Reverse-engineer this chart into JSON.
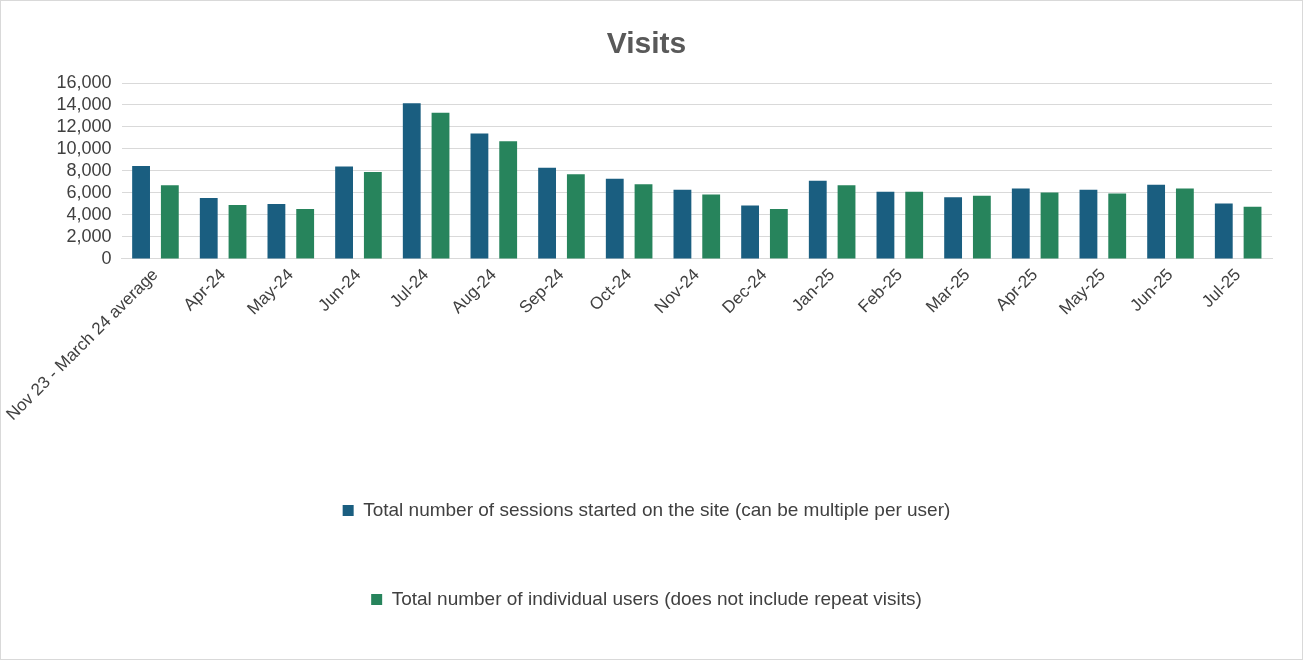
{
  "chart_data": {
    "type": "bar",
    "title": "Visits",
    "categories": [
      "Nov 23 - March 24 average",
      "Apr-24",
      "May-24",
      "Jun-24",
      "Jul-24",
      "Aug-24",
      "Sep-24",
      "Oct-24",
      "Nov-24",
      "Dec-24",
      "Jan-25",
      "Feb-25",
      "Mar-25",
      "Apr-25",
      "May-25",
      "Jun-25",
      "Jul-25"
    ],
    "series": [
      {
        "name": "Total number of sessions started on the site (can be multiple per user)",
        "color": "#1a5e80",
        "values": [
          8450,
          5550,
          5000,
          8400,
          14150,
          11400,
          8300,
          7300,
          6300,
          4850,
          7100,
          6100,
          5600,
          6400,
          6300,
          6750,
          5050
        ]
      },
      {
        "name": "Total number of individual users (does not include repeat visits)",
        "color": "#27845c",
        "values": [
          6700,
          4900,
          4550,
          7900,
          13300,
          10700,
          7700,
          6800,
          5850,
          4550,
          6700,
          6100,
          5750,
          6050,
          5950,
          6400,
          4750
        ]
      }
    ],
    "ylim": [
      0,
      16000
    ],
    "yticks": [
      0,
      {
        "value": 2000,
        "label": "2,000"
      },
      {
        "value": 4000,
        "label": "4,000"
      },
      {
        "value": 6000,
        "label": "6,000"
      },
      {
        "value": 8000,
        "label": "8,000"
      },
      {
        "value": 10000,
        "label": "10,000"
      },
      {
        "value": 12000,
        "label": "12,000"
      },
      {
        "value": 14000,
        "label": "14,000"
      },
      {
        "value": 16000,
        "label": "16,000"
      }
    ],
    "grid": "y",
    "legend": "bottom"
  }
}
